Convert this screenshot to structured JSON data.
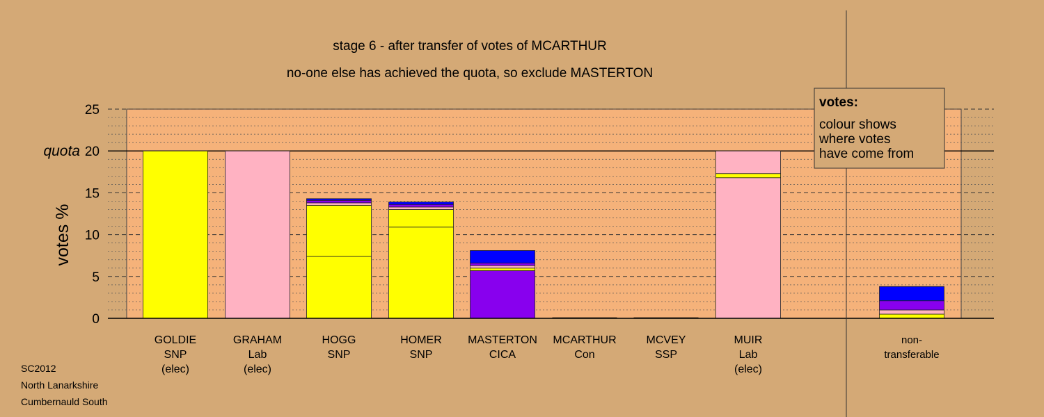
{
  "chart_data": {
    "type": "bar",
    "stacked": true,
    "title": "stage 6 - after transfer of votes of MCARTHUR",
    "subtitle": "no-one else has achieved the quota, so exclude MASTERTON",
    "ylabel": "votes %",
    "ylim": [
      0,
      25
    ],
    "yticks": [
      0,
      5,
      10,
      15,
      20,
      25
    ],
    "quota": 20,
    "quota_label": "quota",
    "grid": true,
    "legend": {
      "title": "votes:",
      "lines": [
        "colour shows",
        "where votes",
        "have come from"
      ],
      "placement": "top-right"
    },
    "categories": [
      {
        "lines": [
          "GOLDIE",
          "SNP",
          "(elec)"
        ]
      },
      {
        "lines": [
          "GRAHAM",
          "Lab",
          "(elec)"
        ]
      },
      {
        "lines": [
          "HOGG",
          "SNP"
        ]
      },
      {
        "lines": [
          "HOMER",
          "SNP"
        ]
      },
      {
        "lines": [
          "MASTERTON",
          "CICA"
        ]
      },
      {
        "lines": [
          "MCARTHUR",
          "Con"
        ]
      },
      {
        "lines": [
          "MCVEY",
          "SSP"
        ]
      },
      {
        "lines": [
          "MUIR",
          "Lab",
          "(elec)"
        ]
      },
      {
        "lines": [
          "non-",
          "transferable"
        ]
      }
    ],
    "stacks": [
      [
        {
          "value": 20.0,
          "color": "#ffff00"
        }
      ],
      [
        {
          "value": 20.0,
          "color": "#ffb2c2"
        }
      ],
      [
        {
          "value": 7.4,
          "color": "#ffff00"
        },
        {
          "value": 6.1,
          "color": "#ffff00"
        },
        {
          "value": 0.3,
          "color": "#ffb2c2"
        },
        {
          "value": 0.3,
          "color": "#8800ee"
        },
        {
          "value": 0.2,
          "color": "#0000ff"
        }
      ],
      [
        {
          "value": 10.9,
          "color": "#ffff00"
        },
        {
          "value": 2.1,
          "color": "#ffff00"
        },
        {
          "value": 0.3,
          "color": "#ffb2c2"
        },
        {
          "value": 0.3,
          "color": "#8800ee"
        },
        {
          "value": 0.3,
          "color": "#0000ff"
        }
      ],
      [
        {
          "value": 5.7,
          "color": "#8800ee"
        },
        {
          "value": 0.3,
          "color": "#ffff00"
        },
        {
          "value": 0.3,
          "color": "#ffb2c2"
        },
        {
          "value": 0.3,
          "color": "#8800ee"
        },
        {
          "value": 1.5,
          "color": "#0000ff"
        }
      ],
      [],
      [],
      [
        {
          "value": 16.8,
          "color": "#ffb2c2"
        },
        {
          "value": 0.5,
          "color": "#ffff00"
        },
        {
          "value": 2.7,
          "color": "#ffb2c2"
        }
      ],
      [
        {
          "value": 0.5,
          "color": "#ffff00"
        },
        {
          "value": 0.5,
          "color": "#ffb2c2"
        },
        {
          "value": 1.1,
          "color": "#8800ee"
        },
        {
          "value": 1.7,
          "color": "#0000ff"
        }
      ]
    ]
  },
  "footer": {
    "lines": [
      "SC2012",
      "North Lanarkshire",
      "Cumbernauld South"
    ]
  },
  "colors": {
    "background": "#d4a976",
    "plot_area": "#f5b27a",
    "legend_box": "#d4a976"
  }
}
